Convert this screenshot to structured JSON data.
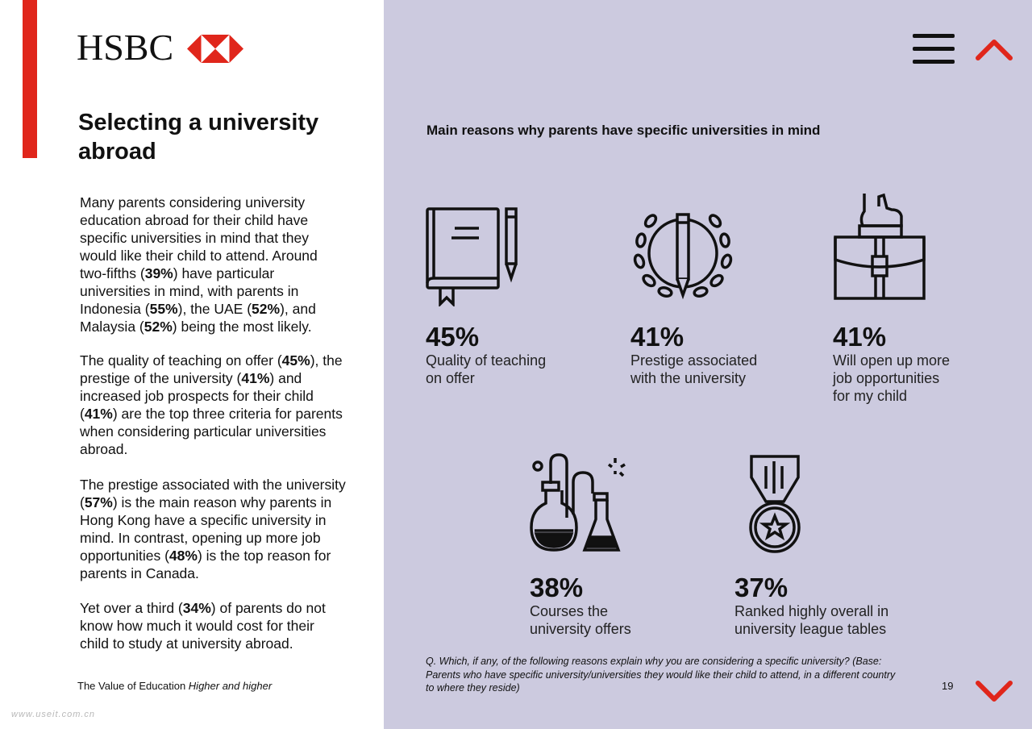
{
  "brand": {
    "name": "HSBC"
  },
  "left": {
    "title": "Selecting a university abroad",
    "paragraphs": [
      [
        "Many parents considering university education abroad for their child have specific universities in mind that they would like their child to attend. Around two-fifths (",
        "39%",
        ") have particular universities in mind, with parents in Indonesia (",
        "55%",
        "), the UAE (",
        "52%",
        "), and Malaysia (",
        "52%",
        ") being the most likely."
      ],
      [
        "The quality of teaching on offer (",
        "45%",
        "), the prestige of the university (",
        "41%",
        ") and increased job prospects for their child (",
        "41%",
        ") are the top three criteria for parents when considering particular universities abroad."
      ],
      [
        "The prestige associated with the university (",
        "57%",
        ") is the main reason why parents in Hong Kong have a specific university in mind. In contrast, opening up more job opportunities (",
        "48%",
        ") is the top reason for parents in Canada."
      ],
      [
        "Yet over a third (",
        "34%",
        ") of parents do not know how much it would cost for their child to study at university abroad."
      ]
    ],
    "footer_prefix": "The Value of Education ",
    "footer_italic": "Higher and higher",
    "watermark": "www.useit.com.cn"
  },
  "right": {
    "title": "Main reasons why parents have specific universities in mind",
    "stats": [
      {
        "pct": "45%",
        "label": "Quality of teaching\non offer",
        "icon": "book-pencil-icon"
      },
      {
        "pct": "41%",
        "label": "Prestige associated\nwith the university",
        "icon": "laurel-pencil-icon"
      },
      {
        "pct": "41%",
        "label": "Will open up more\njob opportunities\nfor my child",
        "icon": "briefcase-hand-icon"
      },
      {
        "pct": "38%",
        "label": "Courses the\nuniversity offers",
        "icon": "lab-flasks-icon"
      },
      {
        "pct": "37%",
        "label": "Ranked highly overall in\nuniversity league tables",
        "icon": "medal-star-icon"
      }
    ],
    "question": "Q. Which, if any, of the following reasons explain why you are considering a specific university? (Base: Parents who have specific university/universities they would like their child to attend, in a different country to where they reside)",
    "page_number": "19"
  },
  "nav": {
    "menu_icon": "hamburger-menu-icon",
    "up_icon": "chevron-up-icon",
    "down_icon": "chevron-down-icon"
  },
  "colors": {
    "accent": "#e0261b",
    "panel": "#cccadf"
  }
}
